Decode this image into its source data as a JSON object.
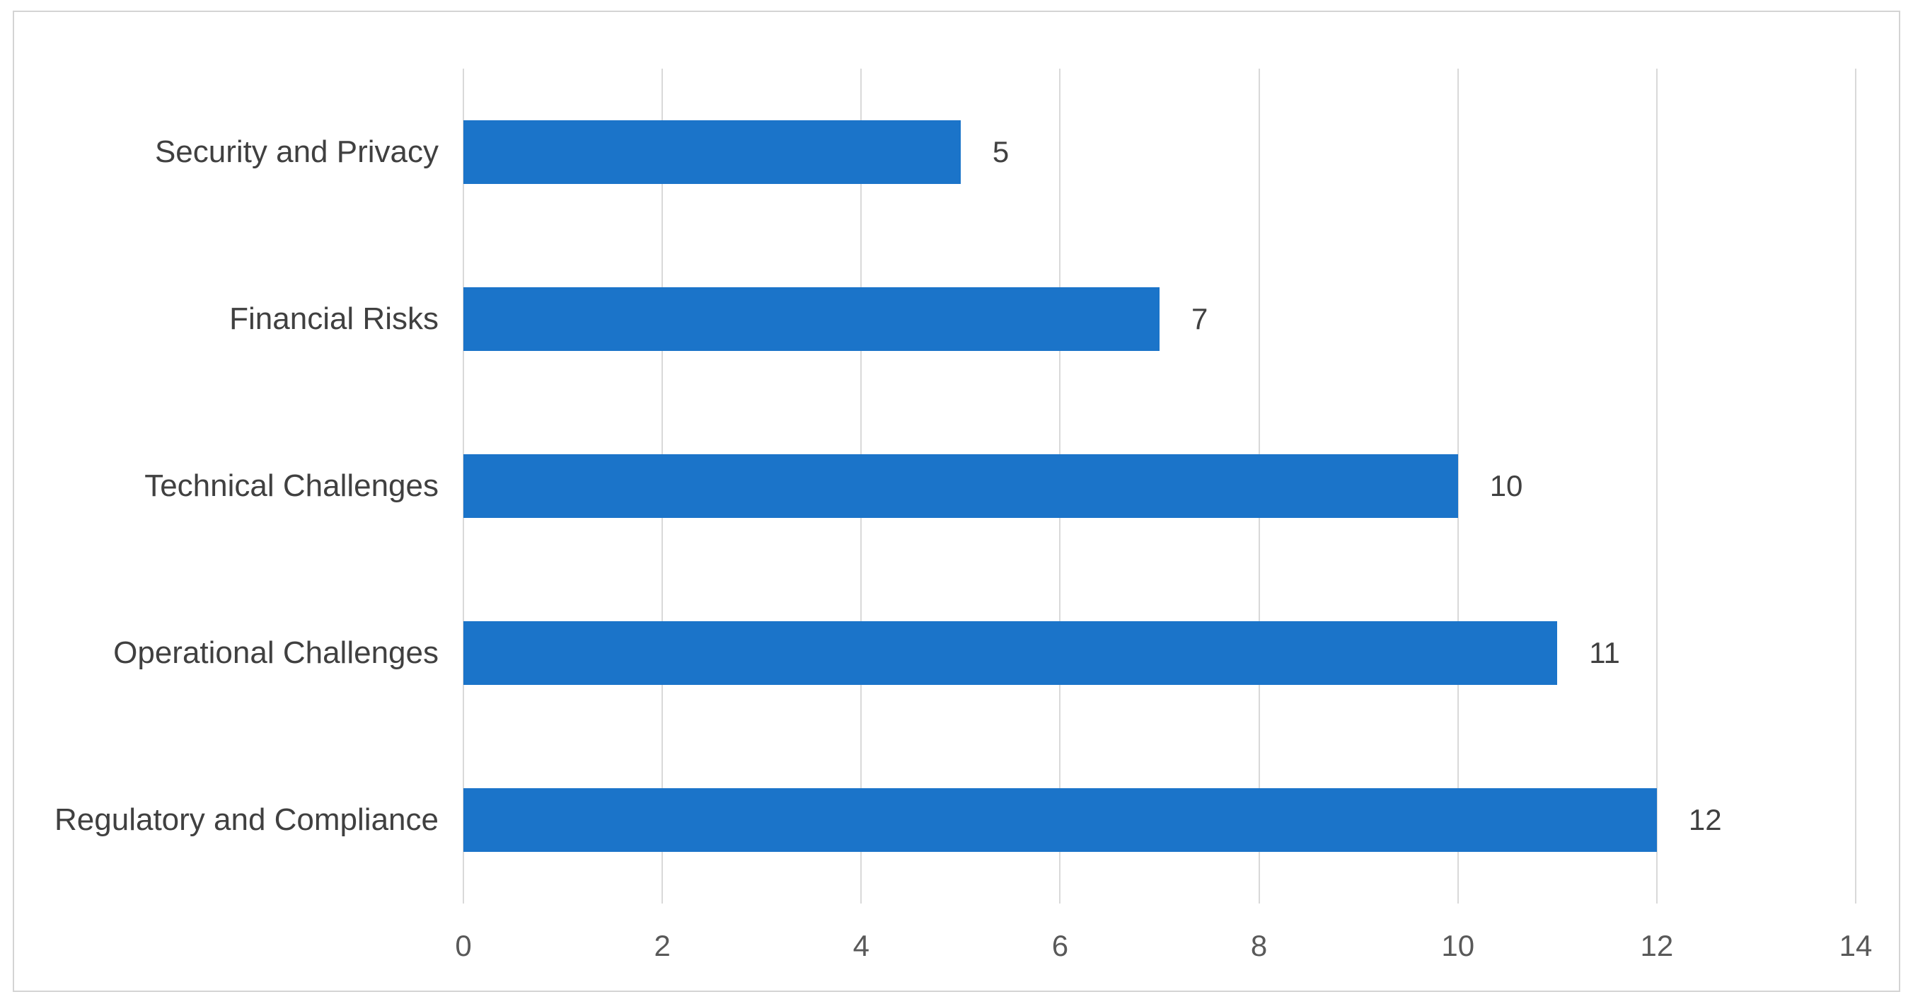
{
  "chart_data": {
    "type": "bar",
    "orientation": "horizontal",
    "title": "",
    "xlabel": "",
    "ylabel": "",
    "categories_top_to_bottom": [
      "Security and Privacy",
      "Financial Risks",
      "Technical Challenges",
      "Operational Challenges",
      "Regulatory and Compliance"
    ],
    "values": [
      5,
      7,
      10,
      11,
      12
    ],
    "data_labels": [
      "5",
      "7",
      "10",
      "11",
      "12"
    ],
    "xlim": [
      0,
      14
    ],
    "x_ticks": [
      0,
      2,
      4,
      6,
      8,
      10,
      12,
      14
    ],
    "x_tick_labels": [
      "0",
      "2",
      "4",
      "6",
      "8",
      "10",
      "12",
      "14"
    ],
    "grid": "vertical-only",
    "legend": "none",
    "colors": {
      "bar_fill": "#1b74c9",
      "gridline": "#d9d9d9",
      "category_label_text": "#404040",
      "data_label_text": "#404040",
      "tick_label_text": "#595959",
      "frame_border": "#d4d4d4",
      "background": "#ffffff"
    }
  }
}
